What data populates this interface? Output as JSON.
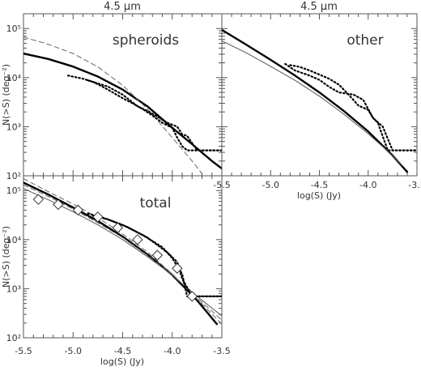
{
  "chart_data": [
    {
      "id": "spheroids",
      "type": "line",
      "top_title": "4.5 μm",
      "panel_label": "spheroids",
      "xlabel": "",
      "ylabel": "N(>S) (deg⁻²)",
      "xlim": [
        -5.5,
        -3.5
      ],
      "ylim": [
        100,
        200000
      ],
      "ylog": true,
      "yticks": [
        {
          "value": 100,
          "label": "10²"
        },
        {
          "value": 1000,
          "label": "10³"
        },
        {
          "value": 10000,
          "label": "10⁴"
        },
        {
          "value": 100000,
          "label": "10⁵"
        }
      ],
      "xticks": [],
      "series": [
        {
          "style": "thick",
          "x": [
            -5.5,
            -5.25,
            -5.0,
            -4.75,
            -4.5,
            -4.25,
            -4.0,
            -3.8,
            -3.6,
            -3.5
          ],
          "y": [
            31000,
            24000,
            16800,
            10500,
            5700,
            2600,
            950,
            440,
            200,
            140
          ]
        },
        {
          "style": "dashed",
          "x": [
            -5.5,
            -5.25,
            -5.0,
            -4.75,
            -4.5,
            -4.25,
            -4.0,
            -3.8,
            -3.7
          ],
          "y": [
            67000,
            48000,
            31000,
            16500,
            7000,
            2300,
            600,
            200,
            110
          ]
        },
        {
          "style": "dotted",
          "x": [
            -5.05,
            -4.9,
            -4.8,
            -4.7,
            -4.6,
            -4.5,
            -4.4,
            -4.3,
            -4.2,
            -4.1,
            -4.0,
            -3.95,
            -3.9,
            -3.85,
            -3.5
          ],
          "y": [
            11000,
            9500,
            8200,
            6500,
            5000,
            3800,
            3000,
            2300,
            1700,
            1200,
            950,
            600,
            400,
            330,
            330
          ]
        },
        {
          "style": "dotted",
          "x": [
            -4.85,
            -4.75,
            -4.65,
            -4.5,
            -4.35,
            -4.25,
            -4.15,
            -4.05,
            -3.95,
            -3.9,
            -3.85,
            -3.75,
            -3.5
          ],
          "y": [
            8800,
            7600,
            6600,
            4500,
            2600,
            2100,
            1600,
            1200,
            1000,
            700,
            650,
            330,
            330
          ]
        }
      ]
    },
    {
      "id": "other",
      "type": "line",
      "top_title": "4.5 μm",
      "panel_label": "other",
      "xlabel": "log(S) (Jy)",
      "ylabel": "",
      "xlim": [
        -5.5,
        -3.5
      ],
      "ylim": [
        100,
        200000
      ],
      "ylog": true,
      "yticks": [],
      "xticks": [
        {
          "value": -5.5,
          "label": "-5.5"
        },
        {
          "value": -5.0,
          "label": "-5.0"
        },
        {
          "value": -4.5,
          "label": "-4.5"
        },
        {
          "value": -4.0,
          "label": "-4.0"
        },
        {
          "value": -3.5,
          "label": "-3.5"
        }
      ],
      "series": [
        {
          "style": "thick",
          "x": [
            -5.5,
            -5.25,
            -5.0,
            -4.75,
            -4.5,
            -4.25,
            -4.0,
            -3.75,
            -3.6
          ],
          "y": [
            94000,
            47000,
            23000,
            11000,
            5000,
            2100,
            800,
            260,
            120
          ]
        },
        {
          "style": "thin",
          "x": [
            -5.5,
            -5.25,
            -5.0,
            -4.75,
            -4.5,
            -4.25,
            -4.0,
            -3.75,
            -3.65
          ],
          "y": [
            56000,
            32000,
            17000,
            8800,
            4200,
            1800,
            720,
            260,
            160
          ]
        },
        {
          "style": "dotted",
          "x": [
            -4.8,
            -4.7,
            -4.6,
            -4.5,
            -4.4,
            -4.3,
            -4.2,
            -4.1,
            -4.0,
            -3.95,
            -3.9,
            -3.8,
            -3.5
          ],
          "y": [
            18000,
            16500,
            14000,
            11500,
            9500,
            7200,
            4500,
            2700,
            2200,
            1500,
            1200,
            330,
            330
          ]
        },
        {
          "style": "dotted",
          "x": [
            -4.85,
            -4.75,
            -4.6,
            -4.5,
            -4.4,
            -4.3,
            -4.15,
            -4.05,
            -3.95,
            -3.85,
            -3.75,
            -3.5
          ],
          "y": [
            19000,
            14000,
            11000,
            9000,
            6500,
            5000,
            4500,
            3500,
            1500,
            1000,
            330,
            330
          ]
        }
      ]
    },
    {
      "id": "total",
      "type": "line",
      "top_title": "",
      "panel_label": "total",
      "xlabel": "log(S) (Jy)",
      "ylabel": "N(>S) (deg⁻²)",
      "xlim": [
        -5.5,
        -3.5
      ],
      "ylim": [
        100,
        200000
      ],
      "ylog": true,
      "yticks": [
        {
          "value": 100,
          "label": "10²"
        },
        {
          "value": 1000,
          "label": "10³"
        },
        {
          "value": 10000,
          "label": "10⁴"
        },
        {
          "value": 100000,
          "label": "10⁵"
        }
      ],
      "xticks": [
        {
          "value": -5.5,
          "label": "-5.5"
        },
        {
          "value": -5.0,
          "label": "-5.0"
        },
        {
          "value": -4.5,
          "label": "-4.5"
        },
        {
          "value": -4.0,
          "label": "-4.0"
        },
        {
          "value": -3.5,
          "label": "-3.5"
        }
      ],
      "series": [
        {
          "style": "thick",
          "x": [
            -5.5,
            -5.25,
            -5.0,
            -4.75,
            -4.5,
            -4.25,
            -4.0,
            -3.75,
            -3.55
          ],
          "y": [
            145000,
            83000,
            45000,
            24000,
            11500,
            5000,
            1900,
            580,
            190
          ]
        },
        {
          "style": "thin",
          "x": [
            -5.5,
            -5.25,
            -5.0,
            -4.75,
            -4.5,
            -4.25,
            -4.0,
            -3.75,
            -3.5
          ],
          "y": [
            110000,
            65000,
            37000,
            20000,
            10000,
            4500,
            1900,
            700,
            280
          ]
        },
        {
          "style": "dashed",
          "x": [
            -5.5,
            -5.25,
            -5.0,
            -4.75,
            -4.5,
            -4.25,
            -4.0,
            -3.75,
            -3.5
          ],
          "y": [
            175000,
            95000,
            53000,
            28000,
            13000,
            5600,
            2000,
            620,
            190
          ]
        },
        {
          "style": "dashed",
          "x": [
            -5.5,
            -5.25,
            -5.0,
            -4.75,
            -4.5,
            -4.25,
            -4.0,
            -3.75,
            -3.5
          ],
          "y": [
            130000,
            76000,
            42000,
            22000,
            11000,
            4800,
            1900,
            650,
            230
          ]
        },
        {
          "style": "dotted",
          "x": [
            -4.85,
            -4.7,
            -4.5,
            -4.3,
            -4.1,
            -4.0,
            -3.9,
            -3.85,
            -3.5
          ],
          "y": [
            34000,
            28000,
            20000,
            12500,
            7000,
            4200,
            2000,
            700,
            700
          ]
        },
        {
          "style": "dotted",
          "x": [
            -4.8,
            -4.65,
            -4.45,
            -4.25,
            -4.05,
            -3.95,
            -3.9,
            -3.8,
            -3.5
          ],
          "y": [
            31000,
            26000,
            18000,
            11000,
            5500,
            3500,
            1600,
            700,
            700
          ]
        },
        {
          "style": "diamonds",
          "x": [
            -5.35,
            -5.15,
            -4.95,
            -4.75,
            -4.55,
            -4.35,
            -4.15,
            -3.95,
            -3.8
          ],
          "y": [
            66000,
            52000,
            40000,
            29000,
            17500,
            10000,
            4800,
            2600,
            700
          ]
        }
      ]
    }
  ]
}
